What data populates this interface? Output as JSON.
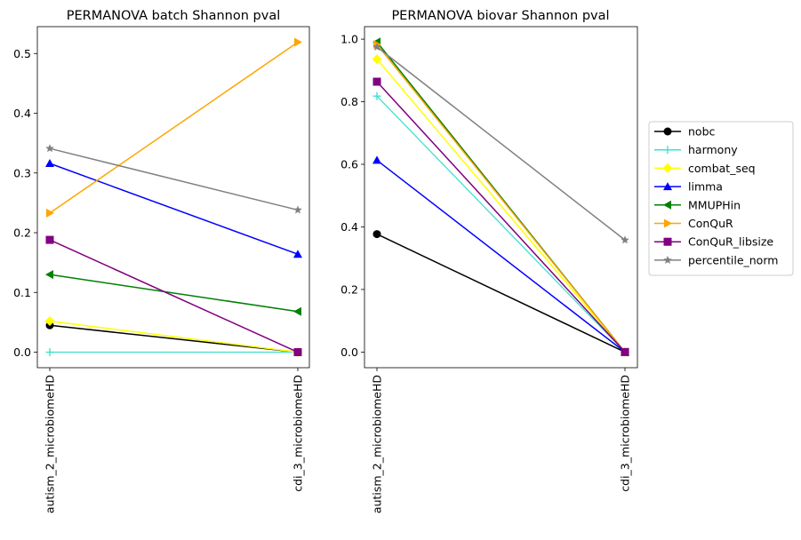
{
  "chart_data": [
    {
      "type": "line",
      "title": "PERMANOVA batch Shannon pval",
      "xlabel": "",
      "ylabel": "",
      "categories": [
        "autism_2_microbiomeHD",
        "cdi_3_microbiomeHD"
      ],
      "ylim": [
        -0.026,
        0.545
      ],
      "yticks": [
        "0.0",
        "0.1",
        "0.2",
        "0.3",
        "0.4",
        "0.5"
      ],
      "yticks_values": [
        0.0,
        0.1,
        0.2,
        0.3,
        0.4,
        0.5
      ],
      "grid": false,
      "series": [
        {
          "name": "nobc",
          "values": [
            0.045,
            0.0
          ]
        },
        {
          "name": "harmony",
          "values": [
            0.0,
            0.0
          ]
        },
        {
          "name": "combat_seq",
          "values": [
            0.052,
            0.0
          ]
        },
        {
          "name": "limma",
          "values": [
            0.316,
            0.164
          ]
        },
        {
          "name": "MMUPHin",
          "values": [
            0.13,
            0.068
          ]
        },
        {
          "name": "ConQuR",
          "values": [
            0.233,
            0.519
          ]
        },
        {
          "name": "ConQuR_libsize",
          "values": [
            0.188,
            0.0
          ]
        },
        {
          "name": "percentile_norm",
          "values": [
            0.341,
            0.238
          ]
        }
      ]
    },
    {
      "type": "line",
      "title": "PERMANOVA biovar Shannon pval",
      "xlabel": "",
      "ylabel": "",
      "categories": [
        "autism_2_microbiomeHD",
        "cdi_3_microbiomeHD"
      ],
      "ylim": [
        -0.05,
        1.04
      ],
      "yticks": [
        "0.0",
        "0.2",
        "0.4",
        "0.6",
        "0.8",
        "1.0"
      ],
      "yticks_values": [
        0.0,
        0.2,
        0.4,
        0.6,
        0.8,
        1.0
      ],
      "grid": false,
      "series": [
        {
          "name": "nobc",
          "values": [
            0.377,
            0.0
          ]
        },
        {
          "name": "harmony",
          "values": [
            0.818,
            0.0
          ]
        },
        {
          "name": "combat_seq",
          "values": [
            0.936,
            0.0
          ]
        },
        {
          "name": "limma",
          "values": [
            0.613,
            0.0
          ]
        },
        {
          "name": "MMUPHin",
          "values": [
            0.991,
            0.0
          ]
        },
        {
          "name": "ConQuR",
          "values": [
            0.983,
            0.0
          ]
        },
        {
          "name": "ConQuR_libsize",
          "values": [
            0.864,
            0.0
          ]
        },
        {
          "name": "percentile_norm",
          "values": [
            0.975,
            0.358
          ]
        }
      ]
    }
  ],
  "legend": {
    "placement": "right",
    "entries": [
      {
        "name": "nobc",
        "color": "#000000",
        "marker": "circle"
      },
      {
        "name": "harmony",
        "color": "#40e0d0",
        "marker": "plus"
      },
      {
        "name": "combat_seq",
        "color": "#ffff00",
        "marker": "diamond"
      },
      {
        "name": "limma",
        "color": "#0000ff",
        "marker": "triangle-up"
      },
      {
        "name": "MMUPHin",
        "color": "#008000",
        "marker": "triangle-left"
      },
      {
        "name": "ConQuR",
        "color": "#ffa500",
        "marker": "triangle-right"
      },
      {
        "name": "ConQuR_libsize",
        "color": "#800080",
        "marker": "square"
      },
      {
        "name": "percentile_norm",
        "color": "#808080",
        "marker": "star"
      }
    ]
  }
}
